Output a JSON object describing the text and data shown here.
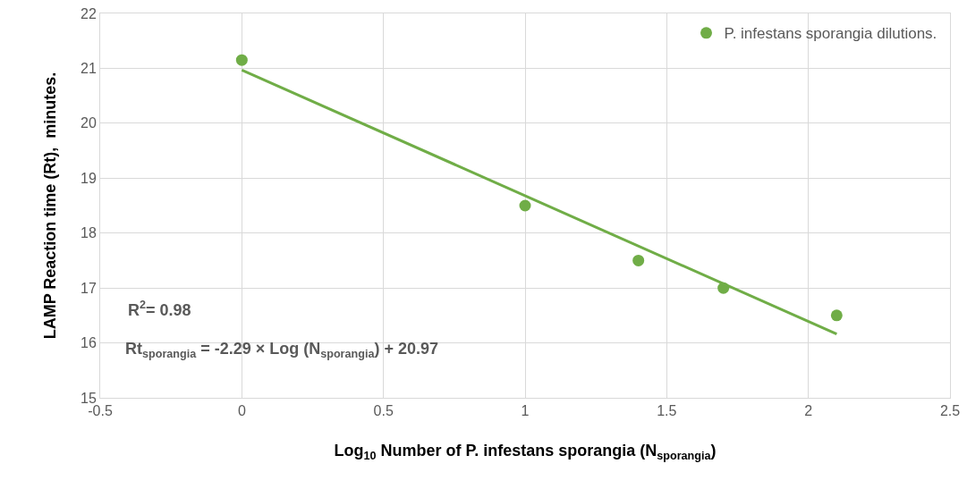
{
  "chart_data": {
    "type": "scatter",
    "xlabel": "Log$_{10}$ Number of P. infestans sporangia (N$_{sporangia}$)",
    "ylabel": "LAMP Reaction time (Rt),  minutes.",
    "series": [
      {
        "name": "P. infestans sporangia dilutions.",
        "color": "#70ad47",
        "x": [
          0,
          1,
          1.4,
          1.7,
          2.1
        ],
        "values": [
          21.15,
          18.5,
          17.5,
          17.0,
          16.5
        ],
        "marker": "circle"
      },
      {
        "type": "line",
        "color": "#70ad47",
        "x": [
          0,
          2.1
        ],
        "values": [
          20.97,
          16.16
        ],
        "marker": "none",
        "line_style": "solid"
      }
    ],
    "xlim": [
      -0.5,
      2.5
    ],
    "xticks": [
      -0.5,
      0,
      0.5,
      1,
      1.5,
      2,
      2.5
    ],
    "ylim": [
      15,
      22
    ],
    "yticks": [
      15,
      16,
      17,
      18,
      19,
      20,
      21,
      22
    ],
    "grid": true,
    "legend": "top right",
    "annotations": [
      "R$^{2}$= 0.98",
      "Rt$_{sporangia}$ = -2.29 × Log (N$_{sporangia}$) + 20.97"
    ]
  }
}
